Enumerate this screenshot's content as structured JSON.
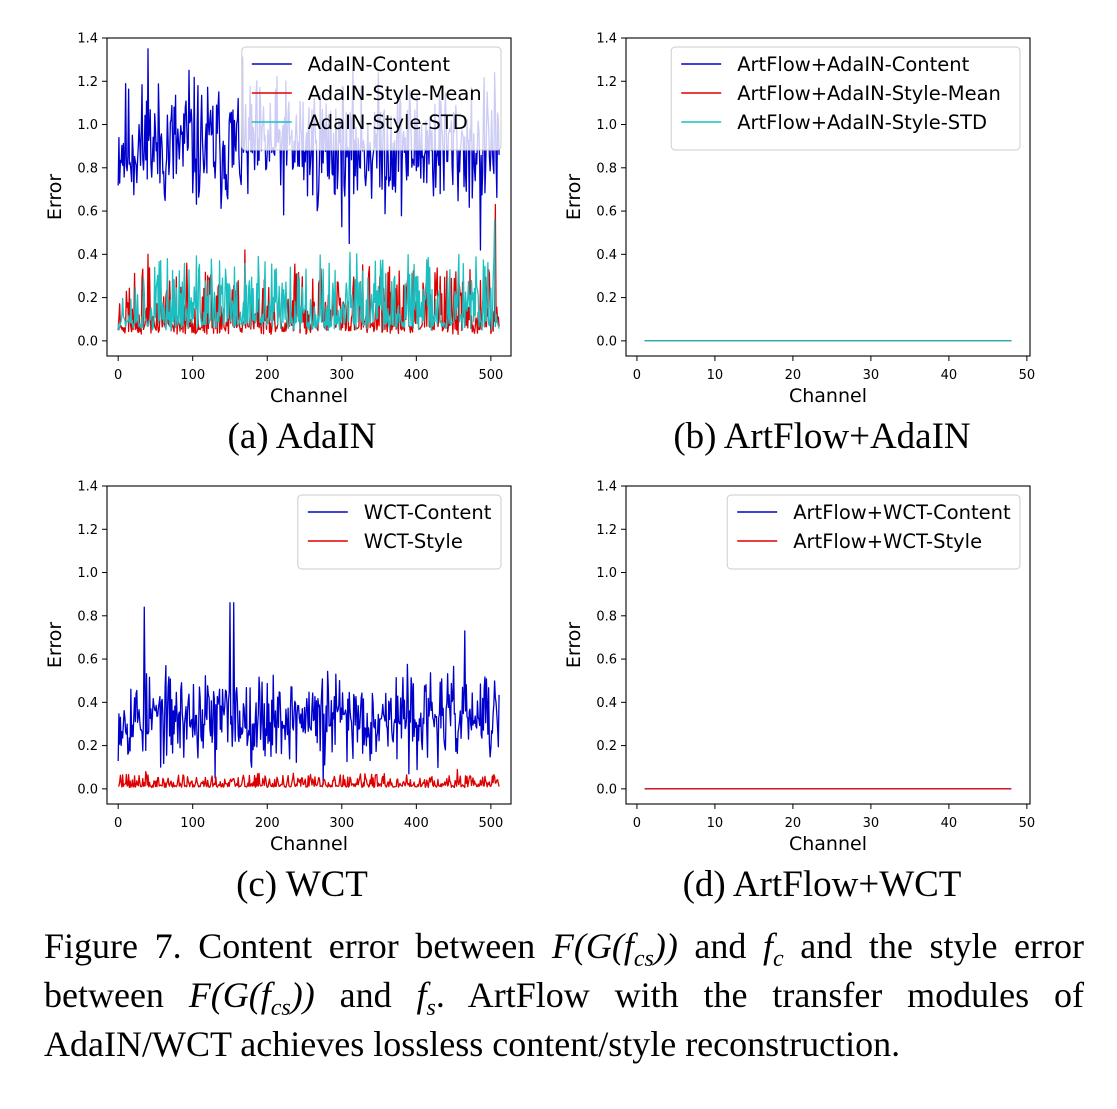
{
  "figure": {
    "caption_parts": [
      "Figure 7. Content error between ",
      "F(G(f",
      "cs",
      "))",
      " and ",
      "f",
      "c",
      " and the style error between ",
      "F(G(f",
      "cs",
      "))",
      " and ",
      "f",
      "s",
      ". ArtFlow with the transfer modules of AdaIN/WCT achieves lossless content/style reconstruction."
    ]
  },
  "chart_data": [
    {
      "type": "line",
      "subcaption": "(a) AdaIN",
      "xlabel": "Channel",
      "ylabel": "Error",
      "xlim": [
        -15,
        527
      ],
      "ylim": [
        -0.07,
        1.4
      ],
      "xticks": [
        0,
        100,
        200,
        300,
        400,
        500
      ],
      "xtick_labels": [
        "0",
        "100",
        "200",
        "300",
        "400",
        "500"
      ],
      "yticks": [
        0.0,
        0.2,
        0.4,
        0.6,
        0.8,
        1.0,
        1.2,
        1.4
      ],
      "ytick_labels": [
        "0.0",
        "0.2",
        "0.4",
        "0.6",
        "0.8",
        "1.0",
        "1.2",
        "1.4"
      ],
      "legend_position": "top-right",
      "series": [
        {
          "name": "AdaIN-Content",
          "color": "#0000cc",
          "x_start": 0,
          "x_step": 1,
          "n": 512,
          "generator": "noise",
          "base": 0.9,
          "amp": 0.18,
          "spikes": [
            [
              40,
              1.35
            ],
            [
              95,
              1.25
            ],
            [
              310,
              0.45
            ],
            [
              486,
              0.42
            ],
            [
              505,
              1.24
            ]
          ],
          "min": 0.48,
          "max": 1.35,
          "seed": 11
        },
        {
          "name": "AdaIN-Style-Mean",
          "color": "#dd0000",
          "x_start": 0,
          "x_step": 1,
          "n": 512,
          "generator": "spiky",
          "base": 0.05,
          "amp": 0.1,
          "spikes": [
            [
              40,
              0.4
            ],
            [
              170,
              0.42
            ],
            [
              506,
              0.63
            ]
          ],
          "min": 0.01,
          "max": 0.63,
          "seed": 23
        },
        {
          "name": "AdaIN-Style-STD",
          "color": "#1cbfbf",
          "x_start": 0,
          "x_step": 1,
          "n": 512,
          "generator": "spiky",
          "base": 0.07,
          "amp": 0.11,
          "spikes": [
            [
              66,
              0.38
            ],
            [
              505,
              0.56
            ]
          ],
          "min": 0.01,
          "max": 0.56,
          "seed": 37
        }
      ]
    },
    {
      "type": "line",
      "subcaption": "(b) ArtFlow+AdaIN",
      "xlabel": "Channel",
      "ylabel": "Error",
      "xlim": [
        -1.4,
        50.4
      ],
      "ylim": [
        -0.07,
        1.4
      ],
      "xticks": [
        0,
        10,
        20,
        30,
        40,
        50
      ],
      "xtick_labels": [
        "0",
        "10",
        "20",
        "30",
        "40",
        "50"
      ],
      "yticks": [
        0.0,
        0.2,
        0.4,
        0.6,
        0.8,
        1.0,
        1.2,
        1.4
      ],
      "ytick_labels": [
        "0.0",
        "0.2",
        "0.4",
        "0.6",
        "0.8",
        "1.0",
        "1.2",
        "1.4"
      ],
      "legend_position": "top-right",
      "series": [
        {
          "name": "ArtFlow+AdaIN-Content",
          "color": "#0000cc",
          "x_start": 1,
          "x_step": 1,
          "n": 48,
          "generator": "zero"
        },
        {
          "name": "ArtFlow+AdaIN-Style-Mean",
          "color": "#dd0000",
          "x_start": 1,
          "x_step": 1,
          "n": 48,
          "generator": "zero"
        },
        {
          "name": "ArtFlow+AdaIN-Style-STD",
          "color": "#1cbfbf",
          "x_start": 1,
          "x_step": 1,
          "n": 48,
          "generator": "zero"
        }
      ]
    },
    {
      "type": "line",
      "subcaption": "(c) WCT",
      "xlabel": "Channel",
      "ylabel": "Error",
      "xlim": [
        -15,
        527
      ],
      "ylim": [
        -0.07,
        1.4
      ],
      "xticks": [
        0,
        100,
        200,
        300,
        400,
        500
      ],
      "xtick_labels": [
        "0",
        "100",
        "200",
        "300",
        "400",
        "500"
      ],
      "yticks": [
        0.0,
        0.2,
        0.4,
        0.6,
        0.8,
        1.0,
        1.2,
        1.4
      ],
      "ytick_labels": [
        "0.0",
        "0.2",
        "0.4",
        "0.6",
        "0.8",
        "1.0",
        "1.2",
        "1.4"
      ],
      "legend_position": "top-right",
      "series": [
        {
          "name": "WCT-Content",
          "color": "#0000cc",
          "x_start": 0,
          "x_step": 1,
          "n": 512,
          "generator": "noise",
          "base": 0.33,
          "amp": 0.12,
          "spikes": [
            [
              35,
              0.84
            ],
            [
              150,
              0.86
            ],
            [
              155,
              0.86
            ],
            [
              130,
              0.05
            ],
            [
              275,
              0.02
            ],
            [
              465,
              0.73
            ]
          ],
          "min": 0.02,
          "max": 0.86,
          "seed": 53
        },
        {
          "name": "WCT-Style",
          "color": "#dd0000",
          "x_start": 0,
          "x_step": 1,
          "n": 512,
          "generator": "spiky",
          "base": 0.01,
          "amp": 0.02,
          "spikes": [
            [
              37,
              0.08
            ],
            [
              255,
              0.06
            ],
            [
              455,
              0.09
            ]
          ],
          "min": 0.0,
          "max": 0.09,
          "seed": 71
        }
      ]
    },
    {
      "type": "line",
      "subcaption": "(d) ArtFlow+WCT",
      "xlabel": "Channel",
      "ylabel": "Error",
      "xlim": [
        -1.4,
        50.4
      ],
      "ylim": [
        -0.07,
        1.4
      ],
      "xticks": [
        0,
        10,
        20,
        30,
        40,
        50
      ],
      "xtick_labels": [
        "0",
        "10",
        "20",
        "30",
        "40",
        "50"
      ],
      "yticks": [
        0.0,
        0.2,
        0.4,
        0.6,
        0.8,
        1.0,
        1.2,
        1.4
      ],
      "ytick_labels": [
        "0.0",
        "0.2",
        "0.4",
        "0.6",
        "0.8",
        "1.0",
        "1.2",
        "1.4"
      ],
      "legend_position": "top-right",
      "series": [
        {
          "name": "ArtFlow+WCT-Content",
          "color": "#0000cc",
          "x_start": 1,
          "x_step": 1,
          "n": 48,
          "generator": "zero"
        },
        {
          "name": "ArtFlow+WCT-Style",
          "color": "#dd0000",
          "x_start": 1,
          "x_step": 1,
          "n": 48,
          "generator": "zero"
        }
      ]
    }
  ]
}
